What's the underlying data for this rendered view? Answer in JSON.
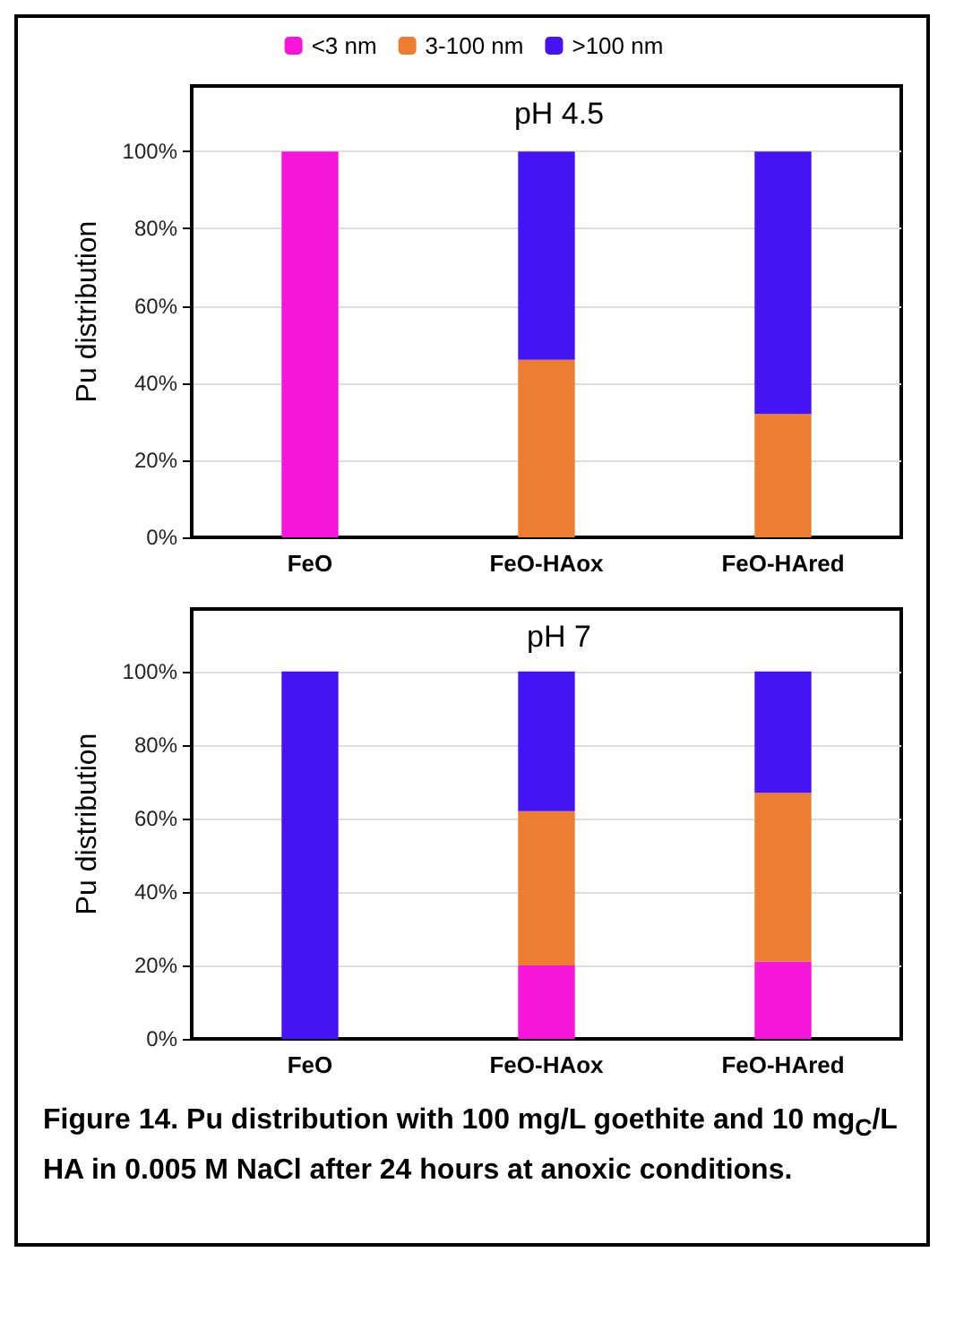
{
  "chart_data": [
    {
      "type": "bar",
      "title": "pH 4.5",
      "ylabel": "Pu distribution",
      "categories": [
        "FeO",
        "FeO-HAox",
        "FeO-HAred"
      ],
      "stacked": true,
      "ylim": [
        0,
        117
      ],
      "yticks": [
        {
          "value": 0,
          "label": "0%"
        },
        {
          "value": 20,
          "label": "20%"
        },
        {
          "value": 40,
          "label": "40%"
        },
        {
          "value": 60,
          "label": "60%"
        },
        {
          "value": 80,
          "label": "80%"
        },
        {
          "value": 100,
          "label": "100%"
        }
      ],
      "grid": "y",
      "legend": "top",
      "series": [
        {
          "name": "<3 nm",
          "color": "#f516d9",
          "values": [
            100,
            0,
            0
          ]
        },
        {
          "name": "3-100 nm",
          "color": "#ed7d31",
          "values": [
            0,
            46,
            32
          ]
        },
        {
          "name": ">100 nm",
          "color": "#4414f5",
          "values": [
            0,
            54,
            68
          ]
        }
      ]
    },
    {
      "type": "bar",
      "title": "pH 7",
      "ylabel": "Pu distribution",
      "categories": [
        "FeO",
        "FeO-HAox",
        "FeO-HAred"
      ],
      "stacked": true,
      "ylim": [
        0,
        117
      ],
      "yticks": [
        {
          "value": 0,
          "label": "0%"
        },
        {
          "value": 20,
          "label": "20%"
        },
        {
          "value": 40,
          "label": "40%"
        },
        {
          "value": 60,
          "label": "60%"
        },
        {
          "value": 80,
          "label": "80%"
        },
        {
          "value": 100,
          "label": "100%"
        }
      ],
      "grid": "y",
      "annotations": [
        "Figure 14. Pu distribution with 100 mg/L goethite and 10 mg$_{C}$/L HA in 0.005 M NaCl after 24 hours at anoxic conditions."
      ],
      "series": [
        {
          "color": "#f516d9",
          "values": [
            0,
            20,
            21
          ]
        },
        {
          "color": "#ed7d31",
          "values": [
            0,
            42,
            46
          ]
        },
        {
          "color": "#4414f5",
          "values": [
            100,
            38,
            33
          ]
        }
      ]
    }
  ]
}
